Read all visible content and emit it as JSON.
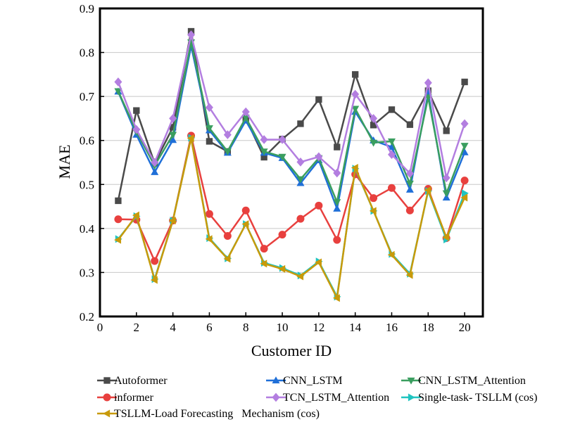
{
  "chart_data": {
    "type": "line",
    "xlabel": "Customer ID",
    "ylabel": "MAE",
    "xlim": [
      0,
      21
    ],
    "ylim": [
      0.2,
      0.9
    ],
    "xticks": [
      0,
      2,
      4,
      6,
      8,
      10,
      12,
      14,
      16,
      18,
      20
    ],
    "yticks": [
      0.2,
      0.3,
      0.4,
      0.5,
      0.6,
      0.7,
      0.8,
      0.9
    ],
    "grid": "horizontal",
    "legend_position": "bottom",
    "x": [
      1,
      2,
      3,
      4,
      5,
      6,
      7,
      8,
      9,
      10,
      11,
      12,
      13,
      14,
      15,
      16,
      17,
      18,
      19,
      20
    ],
    "series": [
      {
        "name": "Autoformer",
        "color": "#4a4a4a",
        "marker": "square",
        "values": [
          0.463,
          0.668,
          0.548,
          0.63,
          0.848,
          0.598,
          0.575,
          0.65,
          0.562,
          0.603,
          0.638,
          0.693,
          0.585,
          0.75,
          0.635,
          0.67,
          0.636,
          0.713,
          0.622,
          0.733
        ]
      },
      {
        "name": "CNN_LSTM",
        "color": "#1f6fd8",
        "marker": "triangle-up",
        "values": [
          0.711,
          0.613,
          0.528,
          0.601,
          0.815,
          0.623,
          0.572,
          0.645,
          0.572,
          0.56,
          0.503,
          0.555,
          0.445,
          0.665,
          0.6,
          0.585,
          0.488,
          0.707,
          0.47,
          0.573
        ]
      },
      {
        "name": "CNN_LSTM_Attention",
        "color": "#3a9e5f",
        "marker": "triangle-down",
        "values": [
          0.712,
          0.62,
          0.543,
          0.613,
          0.823,
          0.628,
          0.575,
          0.652,
          0.575,
          0.563,
          0.512,
          0.56,
          0.46,
          0.672,
          0.595,
          0.598,
          0.502,
          0.698,
          0.48,
          0.588
        ]
      },
      {
        "name": "informer",
        "color": "#e8403e",
        "marker": "circle",
        "values": [
          0.421,
          0.42,
          0.326,
          0.418,
          0.611,
          0.433,
          0.383,
          0.441,
          0.354,
          0.386,
          0.422,
          0.452,
          0.374,
          0.523,
          0.469,
          0.492,
          0.441,
          0.49,
          0.378,
          0.509
        ]
      },
      {
        "name": "TCN_LSTM_Attention",
        "color": "#b37ee0",
        "marker": "diamond",
        "values": [
          0.733,
          0.625,
          0.55,
          0.65,
          0.84,
          0.675,
          0.613,
          0.665,
          0.602,
          0.602,
          0.551,
          0.563,
          0.526,
          0.705,
          0.65,
          0.568,
          0.525,
          0.731,
          0.515,
          0.638
        ]
      },
      {
        "name": "Single-task- TSLLM (cos)",
        "color": "#20c4c0",
        "marker": "triangle-right",
        "values": [
          0.376,
          0.428,
          0.285,
          0.418,
          0.606,
          0.378,
          0.332,
          0.41,
          0.322,
          0.31,
          0.293,
          0.325,
          0.245,
          0.536,
          0.44,
          0.342,
          0.297,
          0.485,
          0.375,
          0.48
        ]
      },
      {
        "name": "TSLLM-Load Forecasting   Mechanism (cos)",
        "color": "#c89a0a",
        "marker": "triangle-left",
        "values": [
          0.374,
          0.43,
          0.283,
          0.418,
          0.605,
          0.376,
          0.331,
          0.41,
          0.32,
          0.308,
          0.291,
          0.323,
          0.242,
          0.538,
          0.44,
          0.34,
          0.294,
          0.487,
          0.38,
          0.47
        ]
      }
    ]
  }
}
